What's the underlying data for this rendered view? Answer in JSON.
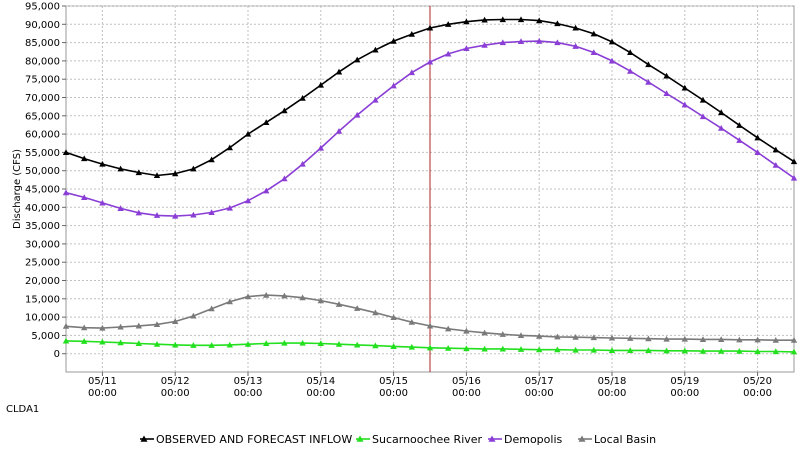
{
  "station_label": "CLDA1",
  "colors": {
    "observed": "#000000",
    "sucarnoochee": "#22e01e",
    "demopolis": "#8a3ed6",
    "local": "#7a7a7a",
    "marker_line": "#b02020",
    "grid": "#c0c0c0"
  },
  "chart_data": {
    "type": "line",
    "ylabel": "Discharge (CFS)",
    "xlabel": "",
    "ylim": [
      -5000,
      95000
    ],
    "y_ticks": [
      0,
      5000,
      10000,
      15000,
      20000,
      25000,
      30000,
      35000,
      40000,
      45000,
      50000,
      55000,
      60000,
      65000,
      70000,
      75000,
      80000,
      85000,
      90000,
      95000
    ],
    "y_tick_labels": [
      "0",
      "5,000",
      "10,000",
      "15,000",
      "20,000",
      "25,000",
      "30,000",
      "35,000",
      "40,000",
      "45,000",
      "50,000",
      "55,000",
      "60,000",
      "65,000",
      "70,000",
      "75,000",
      "80,000",
      "85,000",
      "90,000",
      "95,000"
    ],
    "xlim": [
      -0.5,
      9.5
    ],
    "x_ticks": [
      {
        "x": 0,
        "date": "05/11",
        "time": "00:00"
      },
      {
        "x": 1,
        "date": "05/12",
        "time": "00:00"
      },
      {
        "x": 2,
        "date": "05/13",
        "time": "00:00"
      },
      {
        "x": 3,
        "date": "05/14",
        "time": "00:00"
      },
      {
        "x": 4,
        "date": "05/15",
        "time": "00:00"
      },
      {
        "x": 5,
        "date": "05/16",
        "time": "00:00"
      },
      {
        "x": 6,
        "date": "05/17",
        "time": "00:00"
      },
      {
        "x": 7,
        "date": "05/18",
        "time": "00:00"
      },
      {
        "x": 8,
        "date": "05/19",
        "time": "00:00"
      },
      {
        "x": 9,
        "date": "05/20",
        "time": "00:00"
      }
    ],
    "current_time_x": 4.5,
    "legend_position": "bottom",
    "grid": true,
    "series": [
      {
        "name": "OBSERVED AND FORECAST INFLOW",
        "color_key": "observed",
        "points": [
          [
            -0.5,
            55000
          ],
          [
            -0.25,
            53300
          ],
          [
            0,
            51800
          ],
          [
            0.25,
            50500
          ],
          [
            0.5,
            49500
          ],
          [
            0.75,
            48700
          ],
          [
            1,
            49200
          ],
          [
            1.25,
            50500
          ],
          [
            1.5,
            53000
          ],
          [
            1.75,
            56300
          ],
          [
            2,
            60000
          ],
          [
            2.25,
            63200
          ],
          [
            2.5,
            66400
          ],
          [
            2.75,
            69800
          ],
          [
            3,
            73400
          ],
          [
            3.25,
            77000
          ],
          [
            3.5,
            80300
          ],
          [
            3.75,
            83000
          ],
          [
            4,
            85400
          ],
          [
            4.25,
            87300
          ],
          [
            4.5,
            89000
          ],
          [
            4.75,
            90000
          ],
          [
            5,
            90700
          ],
          [
            5.25,
            91200
          ],
          [
            5.5,
            91300
          ],
          [
            5.75,
            91300
          ],
          [
            6,
            91000
          ],
          [
            6.25,
            90200
          ],
          [
            6.5,
            89000
          ],
          [
            6.75,
            87400
          ],
          [
            7,
            85200
          ],
          [
            7.25,
            82300
          ],
          [
            7.5,
            79000
          ],
          [
            7.75,
            75900
          ],
          [
            8,
            72600
          ],
          [
            8.25,
            69300
          ],
          [
            8.5,
            65900
          ],
          [
            8.75,
            62400
          ],
          [
            9,
            59000
          ],
          [
            9.25,
            55700
          ],
          [
            9.5,
            52500
          ]
        ]
      },
      {
        "name": "Sucarnoochee River",
        "color_key": "sucarnoochee",
        "points": [
          [
            -0.5,
            3500
          ],
          [
            -0.25,
            3400
          ],
          [
            0,
            3200
          ],
          [
            0.25,
            3000
          ],
          [
            0.5,
            2800
          ],
          [
            0.75,
            2600
          ],
          [
            1,
            2400
          ],
          [
            1.25,
            2300
          ],
          [
            1.5,
            2300
          ],
          [
            1.75,
            2400
          ],
          [
            2,
            2600
          ],
          [
            2.25,
            2800
          ],
          [
            2.5,
            2900
          ],
          [
            2.75,
            2900
          ],
          [
            3,
            2800
          ],
          [
            3.25,
            2600
          ],
          [
            3.5,
            2400
          ],
          [
            3.75,
            2200
          ],
          [
            4,
            2000
          ],
          [
            4.25,
            1800
          ],
          [
            4.5,
            1600
          ],
          [
            4.75,
            1500
          ],
          [
            5,
            1400
          ],
          [
            5.25,
            1300
          ],
          [
            5.5,
            1300
          ],
          [
            5.75,
            1200
          ],
          [
            6,
            1100
          ],
          [
            6.25,
            1100
          ],
          [
            6.5,
            1000
          ],
          [
            6.75,
            1000
          ],
          [
            7,
            900
          ],
          [
            7.25,
            900
          ],
          [
            7.5,
            900
          ],
          [
            7.75,
            800
          ],
          [
            8,
            800
          ],
          [
            8.25,
            700
          ],
          [
            8.5,
            700
          ],
          [
            8.75,
            700
          ],
          [
            9,
            600
          ],
          [
            9.25,
            600
          ],
          [
            9.5,
            500
          ]
        ]
      },
      {
        "name": "Demopolis",
        "color_key": "demopolis",
        "points": [
          [
            -0.5,
            44000
          ],
          [
            -0.25,
            42700
          ],
          [
            0,
            41200
          ],
          [
            0.25,
            39700
          ],
          [
            0.5,
            38500
          ],
          [
            0.75,
            37800
          ],
          [
            1,
            37600
          ],
          [
            1.25,
            37900
          ],
          [
            1.5,
            38600
          ],
          [
            1.75,
            39800
          ],
          [
            2,
            41800
          ],
          [
            2.25,
            44500
          ],
          [
            2.5,
            47800
          ],
          [
            2.75,
            51800
          ],
          [
            3,
            56200
          ],
          [
            3.25,
            60800
          ],
          [
            3.5,
            65200
          ],
          [
            3.75,
            69300
          ],
          [
            4,
            73200
          ],
          [
            4.25,
            76800
          ],
          [
            4.5,
            79700
          ],
          [
            4.75,
            81900
          ],
          [
            5,
            83400
          ],
          [
            5.25,
            84300
          ],
          [
            5.5,
            85000
          ],
          [
            5.75,
            85300
          ],
          [
            6,
            85400
          ],
          [
            6.25,
            85000
          ],
          [
            6.5,
            84000
          ],
          [
            6.75,
            82300
          ],
          [
            7,
            80000
          ],
          [
            7.25,
            77200
          ],
          [
            7.5,
            74200
          ],
          [
            7.75,
            71100
          ],
          [
            8,
            68000
          ],
          [
            8.25,
            64800
          ],
          [
            8.5,
            61600
          ],
          [
            8.75,
            58300
          ],
          [
            9,
            55000
          ],
          [
            9.25,
            51500
          ],
          [
            9.5,
            48000
          ]
        ]
      },
      {
        "name": "Local Basin",
        "color_key": "local",
        "points": [
          [
            -0.5,
            7500
          ],
          [
            -0.25,
            7100
          ],
          [
            0,
            7000
          ],
          [
            0.25,
            7300
          ],
          [
            0.5,
            7600
          ],
          [
            0.75,
            8000
          ],
          [
            1,
            8800
          ],
          [
            1.25,
            10300
          ],
          [
            1.5,
            12300
          ],
          [
            1.75,
            14200
          ],
          [
            2,
            15600
          ],
          [
            2.25,
            16000
          ],
          [
            2.5,
            15800
          ],
          [
            2.75,
            15300
          ],
          [
            3,
            14500
          ],
          [
            3.25,
            13500
          ],
          [
            3.5,
            12400
          ],
          [
            3.75,
            11200
          ],
          [
            4,
            9900
          ],
          [
            4.25,
            8600
          ],
          [
            4.5,
            7600
          ],
          [
            4.75,
            6800
          ],
          [
            5,
            6200
          ],
          [
            5.25,
            5700
          ],
          [
            5.5,
            5300
          ],
          [
            5.75,
            5000
          ],
          [
            6,
            4800
          ],
          [
            6.25,
            4600
          ],
          [
            6.5,
            4500
          ],
          [
            6.75,
            4400
          ],
          [
            7,
            4300
          ],
          [
            7.25,
            4200
          ],
          [
            7.5,
            4100
          ],
          [
            7.75,
            4000
          ],
          [
            8,
            4000
          ],
          [
            8.25,
            3900
          ],
          [
            8.5,
            3900
          ],
          [
            8.75,
            3800
          ],
          [
            9,
            3800
          ],
          [
            9.25,
            3700
          ],
          [
            9.5,
            3700
          ]
        ]
      }
    ]
  }
}
